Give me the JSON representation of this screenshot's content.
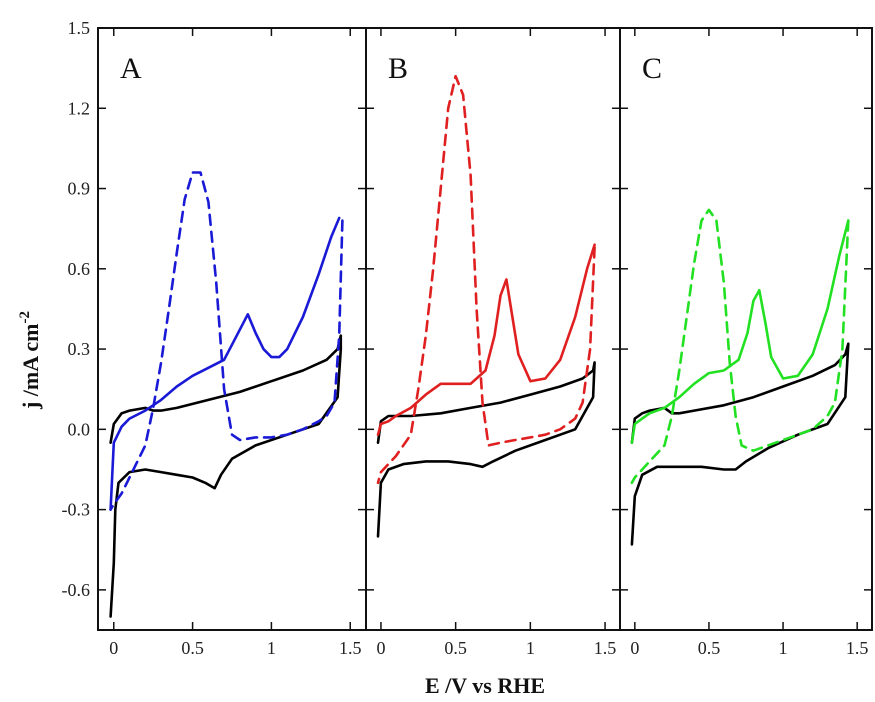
{
  "chart_data": {
    "type": "line",
    "ylabel": "j /mA cm",
    "ylabel_sup": "-2",
    "xlabel": "E /V vs RHE",
    "xlim": [
      -0.1,
      1.6
    ],
    "ylim": [
      -0.75,
      1.5
    ],
    "xticks": [
      0,
      0.5,
      1,
      1.5
    ],
    "xtick_labels": [
      "0",
      "0.5",
      "1",
      "1.5"
    ],
    "yticks": [
      -0.6,
      -0.3,
      0.0,
      0.3,
      0.6,
      0.9,
      1.2,
      1.5
    ],
    "ytick_labels": [
      "-0.6",
      "-0.3",
      "0.0",
      "0.3",
      "0.6",
      "0.9",
      "1.2",
      "1.5"
    ],
    "grid": false,
    "panels": [
      {
        "label": "A",
        "series": [
          {
            "color": "#000000",
            "style": "solid",
            "x": [
              -0.02,
              0.0,
              0.05,
              0.1,
              0.2,
              0.25,
              0.3,
              0.4,
              0.6,
              0.8,
              1.0,
              1.2,
              1.35,
              1.42,
              1.44,
              1.44,
              1.42,
              1.3,
              1.1,
              0.9,
              0.75,
              0.68,
              0.64,
              0.58,
              0.5,
              0.4,
              0.3,
              0.2,
              0.1,
              0.03,
              0.01,
              0.0,
              -0.02
            ],
            "y": [
              -0.05,
              0.02,
              0.06,
              0.07,
              0.08,
              0.07,
              0.07,
              0.08,
              0.11,
              0.14,
              0.18,
              0.22,
              0.26,
              0.3,
              0.35,
              0.3,
              0.12,
              0.02,
              -0.02,
              -0.06,
              -0.11,
              -0.17,
              -0.22,
              -0.2,
              -0.18,
              -0.17,
              -0.16,
              -0.15,
              -0.16,
              -0.2,
              -0.3,
              -0.5,
              -0.7
            ]
          },
          {
            "color": "#1a1ad6",
            "style": "solid",
            "x": [
              -0.02,
              0.0,
              0.05,
              0.1,
              0.2,
              0.3,
              0.4,
              0.5,
              0.6,
              0.7,
              0.78,
              0.85,
              0.9,
              0.95,
              1.0,
              1.05,
              1.1,
              1.2,
              1.3,
              1.38,
              1.43
            ],
            "y": [
              -0.3,
              -0.05,
              0.01,
              0.04,
              0.07,
              0.11,
              0.16,
              0.2,
              0.23,
              0.26,
              0.35,
              0.43,
              0.36,
              0.3,
              0.27,
              0.27,
              0.3,
              0.42,
              0.58,
              0.72,
              0.79
            ]
          },
          {
            "color": "#1a1ad6",
            "style": "dashed",
            "x": [
              1.45,
              1.43,
              1.4,
              1.35,
              1.3,
              1.2,
              1.1,
              1.0,
              0.9,
              0.8,
              0.75,
              0.7,
              0.65,
              0.6,
              0.55,
              0.5,
              0.45,
              0.4,
              0.35,
              0.3,
              0.25,
              0.2,
              0.1,
              0.05,
              0.0,
              -0.02
            ],
            "y": [
              0.78,
              0.35,
              0.1,
              0.05,
              0.03,
              0.0,
              -0.02,
              -0.03,
              -0.03,
              -0.04,
              -0.02,
              0.15,
              0.55,
              0.85,
              0.96,
              0.96,
              0.86,
              0.66,
              0.45,
              0.25,
              0.08,
              -0.06,
              -0.18,
              -0.24,
              -0.28,
              -0.3
            ]
          }
        ]
      },
      {
        "label": "B",
        "series": [
          {
            "color": "#000000",
            "style": "solid",
            "x": [
              -0.02,
              0.0,
              0.05,
              0.1,
              0.2,
              0.4,
              0.6,
              0.8,
              1.0,
              1.2,
              1.35,
              1.42,
              1.43,
              1.42,
              1.3,
              1.1,
              0.9,
              0.75,
              0.68,
              0.6,
              0.45,
              0.3,
              0.15,
              0.05,
              0.0,
              -0.02
            ],
            "y": [
              -0.05,
              0.03,
              0.05,
              0.05,
              0.05,
              0.06,
              0.08,
              0.1,
              0.13,
              0.16,
              0.19,
              0.22,
              0.25,
              0.12,
              0.0,
              -0.04,
              -0.08,
              -0.12,
              -0.14,
              -0.13,
              -0.12,
              -0.12,
              -0.13,
              -0.15,
              -0.2,
              -0.4
            ]
          },
          {
            "color": "#e02020",
            "style": "solid",
            "x": [
              -0.02,
              0.0,
              0.05,
              0.1,
              0.2,
              0.3,
              0.4,
              0.5,
              0.6,
              0.7,
              0.76,
              0.8,
              0.84,
              0.88,
              0.92,
              1.0,
              1.1,
              1.2,
              1.3,
              1.38,
              1.43
            ],
            "y": [
              -0.02,
              0.02,
              0.03,
              0.05,
              0.08,
              0.13,
              0.17,
              0.17,
              0.17,
              0.22,
              0.35,
              0.5,
              0.56,
              0.42,
              0.28,
              0.18,
              0.19,
              0.26,
              0.42,
              0.6,
              0.69
            ]
          },
          {
            "color": "#e02020",
            "style": "dashed",
            "x": [
              1.43,
              1.4,
              1.35,
              1.3,
              1.2,
              1.1,
              1.0,
              0.9,
              0.8,
              0.72,
              0.68,
              0.64,
              0.6,
              0.55,
              0.5,
              0.45,
              0.4,
              0.35,
              0.3,
              0.25,
              0.2,
              0.1,
              0.05,
              0.0,
              -0.02
            ],
            "y": [
              0.68,
              0.3,
              0.1,
              0.04,
              0.0,
              -0.02,
              -0.03,
              -0.04,
              -0.05,
              -0.06,
              0.1,
              0.45,
              0.95,
              1.25,
              1.32,
              1.2,
              0.9,
              0.6,
              0.35,
              0.15,
              -0.02,
              -0.1,
              -0.13,
              -0.16,
              -0.2
            ]
          }
        ]
      },
      {
        "label": "C",
        "series": [
          {
            "color": "#000000",
            "style": "solid",
            "x": [
              -0.02,
              0.0,
              0.05,
              0.1,
              0.2,
              0.25,
              0.3,
              0.4,
              0.6,
              0.8,
              1.0,
              1.2,
              1.35,
              1.42,
              1.44,
              1.42,
              1.3,
              1.1,
              0.9,
              0.75,
              0.68,
              0.6,
              0.45,
              0.3,
              0.15,
              0.05,
              0.0,
              -0.02
            ],
            "y": [
              -0.05,
              0.04,
              0.06,
              0.07,
              0.08,
              0.06,
              0.06,
              0.07,
              0.09,
              0.12,
              0.16,
              0.2,
              0.24,
              0.28,
              0.32,
              0.12,
              0.02,
              -0.02,
              -0.07,
              -0.12,
              -0.15,
              -0.15,
              -0.14,
              -0.14,
              -0.14,
              -0.17,
              -0.25,
              -0.43
            ]
          },
          {
            "color": "#22e022",
            "style": "solid",
            "x": [
              -0.02,
              0.0,
              0.05,
              0.1,
              0.2,
              0.3,
              0.4,
              0.5,
              0.6,
              0.7,
              0.76,
              0.8,
              0.84,
              0.88,
              0.92,
              1.0,
              1.1,
              1.2,
              1.3,
              1.38,
              1.44
            ],
            "y": [
              -0.05,
              0.02,
              0.04,
              0.06,
              0.08,
              0.12,
              0.17,
              0.21,
              0.22,
              0.26,
              0.36,
              0.48,
              0.52,
              0.4,
              0.27,
              0.19,
              0.2,
              0.28,
              0.45,
              0.65,
              0.78
            ]
          },
          {
            "color": "#22e022",
            "style": "dashed",
            "x": [
              1.44,
              1.4,
              1.35,
              1.3,
              1.2,
              1.1,
              1.0,
              0.9,
              0.8,
              0.72,
              0.68,
              0.64,
              0.6,
              0.55,
              0.5,
              0.45,
              0.4,
              0.35,
              0.3,
              0.25,
              0.2,
              0.1,
              0.05,
              0.0,
              -0.02
            ],
            "y": [
              0.78,
              0.3,
              0.1,
              0.05,
              0.0,
              -0.02,
              -0.04,
              -0.06,
              -0.08,
              -0.06,
              0.05,
              0.25,
              0.55,
              0.78,
              0.82,
              0.78,
              0.62,
              0.42,
              0.22,
              0.05,
              -0.06,
              -0.12,
              -0.15,
              -0.18,
              -0.2
            ]
          }
        ]
      }
    ]
  }
}
